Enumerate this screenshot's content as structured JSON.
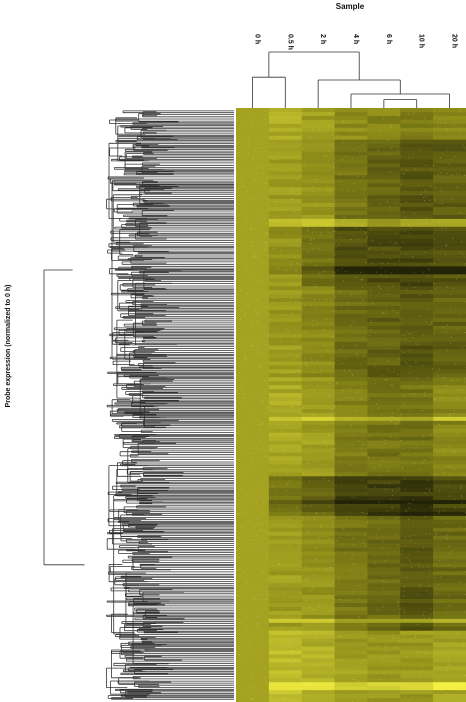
{
  "chart_data": {
    "type": "heatmap",
    "title": "Sample",
    "ylabel": "Probe expression (normalized to 0 h)",
    "columns": [
      "0 h",
      "0.5 h",
      "2 h",
      "4 h",
      "6 h",
      "10 h",
      "20 h"
    ],
    "column_profile": [
      0.62,
      0.6,
      0.58,
      0.42,
      0.36,
      0.3,
      0.34
    ],
    "row_bands": [
      {
        "from": 0.0,
        "to": 0.05,
        "values": [
          0.62,
          0.66,
          0.6,
          0.52,
          0.48,
          0.45,
          0.5
        ]
      },
      {
        "from": 0.05,
        "to": 0.2,
        "values": [
          0.62,
          0.58,
          0.55,
          0.4,
          0.32,
          0.25,
          0.28
        ]
      },
      {
        "from": 0.2,
        "to": 0.3,
        "values": [
          0.62,
          0.55,
          0.4,
          0.22,
          0.2,
          0.18,
          0.25
        ]
      },
      {
        "from": 0.3,
        "to": 0.45,
        "values": [
          0.62,
          0.58,
          0.5,
          0.35,
          0.3,
          0.25,
          0.3
        ]
      },
      {
        "from": 0.45,
        "to": 0.62,
        "values": [
          0.62,
          0.65,
          0.6,
          0.45,
          0.4,
          0.38,
          0.48
        ]
      },
      {
        "from": 0.62,
        "to": 0.68,
        "values": [
          0.62,
          0.4,
          0.3,
          0.15,
          0.15,
          0.12,
          0.2
        ]
      },
      {
        "from": 0.68,
        "to": 0.88,
        "values": [
          0.62,
          0.6,
          0.55,
          0.4,
          0.35,
          0.25,
          0.35
        ]
      },
      {
        "from": 0.88,
        "to": 1.0,
        "values": [
          0.62,
          0.75,
          0.68,
          0.6,
          0.55,
          0.58,
          0.62
        ]
      }
    ],
    "bright_rows": [
      0.19,
      0.52,
      0.86,
      0.97
    ],
    "dark_rows": [
      0.27,
      0.66,
      0.68
    ],
    "color_scale": {
      "low": "#232307",
      "mid": "#8c8a18",
      "high": "#f4f040"
    },
    "col_tree": [
      {
        "a": 0,
        "b": 1,
        "h": 0.55
      },
      {
        "a": 4,
        "b": 5,
        "h": 0.15
      },
      {
        "a": 6,
        "b": 3,
        "h": 0.25
      },
      {
        "a": 3,
        "b": 2,
        "h": 0.5
      },
      {
        "a": 2,
        "b": 0,
        "h": 1.0
      }
    ]
  }
}
